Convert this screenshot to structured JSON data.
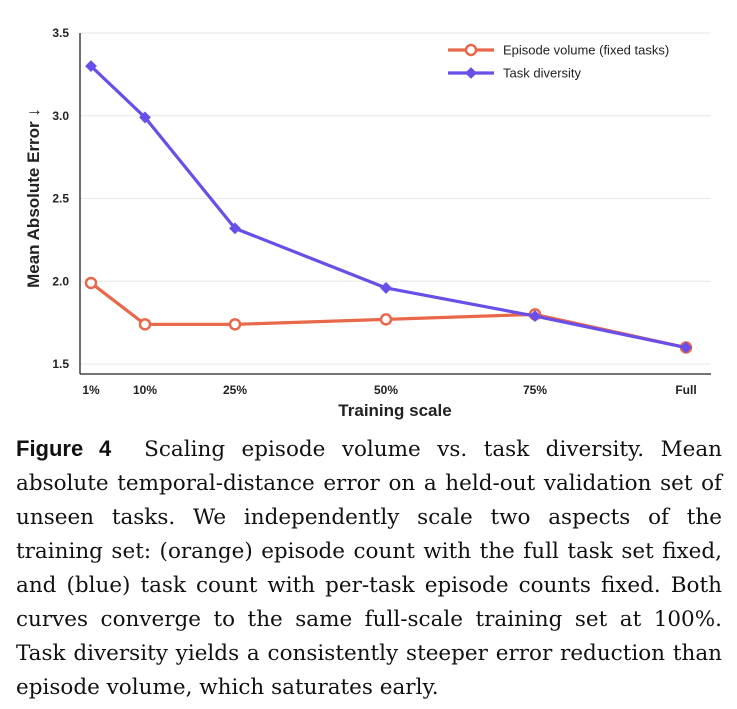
{
  "chart_data": {
    "type": "line",
    "categories": [
      "1%",
      "10%",
      "25%",
      "50%",
      "75%",
      "Full"
    ],
    "xlabel": "Training scale",
    "ylabel": "Mean Absolute Error ↓",
    "ylim": [
      1.44,
      3.5
    ],
    "yticks": [
      1.5,
      2.0,
      2.5,
      3.0,
      3.5
    ],
    "ytick_labels": [
      "1.5",
      "2.0",
      "2.5",
      "3.0",
      "3.5"
    ],
    "grid": true,
    "legend_position": "top-right",
    "series": [
      {
        "name": "Episode volume (fixed tasks)",
        "color": "#e8684a",
        "marker": "circle-open",
        "values": [
          1.99,
          1.74,
          1.74,
          1.77,
          1.8,
          1.6
        ]
      },
      {
        "name": "Task diversity",
        "color": "#6a4ee8",
        "marker": "diamond",
        "values": [
          3.3,
          2.99,
          2.32,
          1.96,
          1.79,
          1.6
        ]
      }
    ]
  },
  "caption": {
    "label": "Figure 4",
    "text": "Scaling episode volume vs. task diversity. Mean absolute temporal-distance error on a held-out validation set of unseen tasks. We independently scale two aspects of the training set: (orange) episode count with the full task set fixed, and (blue) task count with per-task episode counts fixed. Both curves converge to the same full-scale training set at 100%. Task diversity yields a consistently steeper error reduction than episode volume, which saturates early."
  }
}
